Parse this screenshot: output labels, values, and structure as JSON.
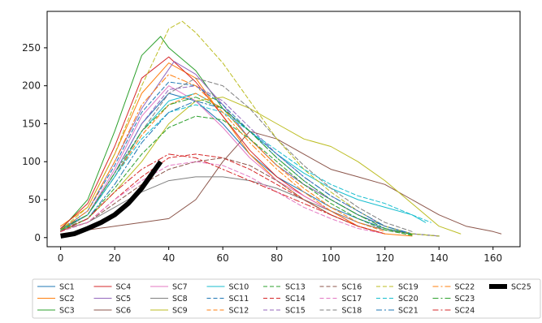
{
  "chart_data": {
    "type": "line",
    "title": "",
    "xlabel": "",
    "ylabel": "",
    "xlim": [
      -5,
      170
    ],
    "ylim": [
      -12,
      298
    ],
    "xticks": [
      0,
      20,
      40,
      60,
      80,
      100,
      120,
      140,
      160
    ],
    "yticks": [
      0,
      50,
      100,
      150,
      200,
      250
    ],
    "legend_position": "bottom",
    "grid": false,
    "series": [
      {
        "name": "SC1",
        "color": "#1f77b4",
        "dash": "solid",
        "x": [
          0,
          10,
          20,
          30,
          40,
          50,
          60,
          70,
          80,
          90,
          100,
          110,
          120,
          130,
          140
        ],
        "y": [
          12,
          30,
          85,
          150,
          190,
          180,
          150,
          110,
          80,
          60,
          40,
          25,
          12,
          5,
          2
        ]
      },
      {
        "name": "SC2",
        "color": "#ff7f0e",
        "dash": "solid",
        "x": [
          0,
          10,
          20,
          30,
          40,
          50,
          60,
          70,
          80,
          90,
          100,
          110,
          120,
          130
        ],
        "y": [
          15,
          40,
          110,
          190,
          230,
          210,
          160,
          110,
          75,
          50,
          30,
          15,
          5,
          2
        ]
      },
      {
        "name": "SC3",
        "color": "#2ca02c",
        "dash": "solid",
        "x": [
          0,
          10,
          20,
          30,
          37,
          40,
          50,
          60,
          70,
          80,
          90,
          100,
          110,
          120,
          130,
          140
        ],
        "y": [
          10,
          50,
          140,
          240,
          265,
          250,
          220,
          170,
          130,
          95,
          70,
          50,
          30,
          15,
          5,
          2
        ]
      },
      {
        "name": "SC4",
        "color": "#d62728",
        "dash": "solid",
        "x": [
          0,
          10,
          20,
          30,
          40,
          50,
          60,
          70,
          80,
          90,
          100,
          110,
          120
        ],
        "y": [
          12,
          45,
          120,
          210,
          238,
          205,
          160,
          115,
          80,
          55,
          35,
          15,
          5
        ]
      },
      {
        "name": "SC5",
        "color": "#9467bd",
        "dash": "solid",
        "x": [
          0,
          10,
          20,
          30,
          42,
          50,
          60,
          70,
          80,
          90,
          100,
          110,
          120,
          130,
          140
        ],
        "y": [
          10,
          35,
          100,
          170,
          232,
          215,
          175,
          130,
          95,
          70,
          50,
          30,
          15,
          5,
          2
        ]
      },
      {
        "name": "SC6",
        "color": "#8c564b",
        "dash": "solid",
        "x": [
          0,
          10,
          20,
          30,
          40,
          50,
          60,
          70,
          80,
          90,
          100,
          110,
          120,
          130,
          140,
          150,
          160,
          163
        ],
        "y": [
          5,
          10,
          15,
          20,
          25,
          50,
          100,
          140,
          130,
          110,
          90,
          80,
          70,
          50,
          30,
          15,
          8,
          5
        ]
      },
      {
        "name": "SC7",
        "color": "#e377c2",
        "dash": "solid",
        "x": [
          0,
          10,
          20,
          30,
          40,
          50,
          60,
          70,
          80,
          90,
          100,
          110,
          120
        ],
        "y": [
          8,
          30,
          90,
          160,
          200,
          180,
          145,
          105,
          75,
          55,
          35,
          20,
          10
        ]
      },
      {
        "name": "SC8",
        "color": "#7f7f7f",
        "dash": "solid",
        "x": [
          0,
          10,
          20,
          30,
          40,
          50,
          60,
          70,
          80,
          90,
          100,
          110,
          120,
          130
        ],
        "y": [
          10,
          20,
          40,
          60,
          75,
          80,
          80,
          75,
          65,
          50,
          35,
          20,
          10,
          5
        ]
      },
      {
        "name": "SC9",
        "color": "#bcbd22",
        "dash": "solid",
        "x": [
          0,
          10,
          20,
          30,
          40,
          50,
          60,
          70,
          80,
          90,
          100,
          110,
          120,
          130,
          140,
          148
        ],
        "y": [
          8,
          25,
          60,
          100,
          150,
          180,
          185,
          170,
          150,
          130,
          120,
          100,
          75,
          45,
          15,
          5
        ]
      },
      {
        "name": "SC10",
        "color": "#17becf",
        "dash": "solid",
        "x": [
          0,
          10,
          20,
          30,
          40,
          50,
          60,
          70,
          80,
          90,
          100,
          110,
          120,
          130,
          135
        ],
        "y": [
          10,
          30,
          80,
          140,
          180,
          190,
          170,
          140,
          110,
          85,
          65,
          50,
          40,
          30,
          20
        ]
      },
      {
        "name": "SC11",
        "color": "#1f77b4",
        "dash": "dashed",
        "x": [
          0,
          10,
          20,
          30,
          40,
          50,
          60,
          70,
          80,
          90,
          100,
          110,
          120,
          130
        ],
        "y": [
          10,
          35,
          95,
          165,
          205,
          200,
          175,
          140,
          105,
          75,
          50,
          30,
          15,
          5
        ]
      },
      {
        "name": "SC12",
        "color": "#ff7f0e",
        "dash": "dashed",
        "x": [
          0,
          10,
          20,
          30,
          40,
          50,
          60,
          70,
          80,
          90,
          100,
          110,
          120
        ],
        "y": [
          10,
          30,
          80,
          135,
          175,
          190,
          170,
          130,
          95,
          65,
          40,
          20,
          8
        ]
      },
      {
        "name": "SC13",
        "color": "#2ca02c",
        "dash": "dashed",
        "x": [
          0,
          10,
          20,
          30,
          40,
          50,
          60,
          70,
          80,
          90,
          100,
          110,
          120,
          130
        ],
        "y": [
          10,
          25,
          65,
          110,
          145,
          160,
          155,
          130,
          100,
          70,
          45,
          25,
          10,
          3
        ]
      },
      {
        "name": "SC14",
        "color": "#d62728",
        "dash": "dashed",
        "x": [
          0,
          10,
          20,
          30,
          40,
          50,
          60,
          70,
          80,
          90,
          100,
          110,
          120
        ],
        "y": [
          8,
          20,
          50,
          80,
          105,
          110,
          105,
          90,
          70,
          50,
          30,
          15,
          5
        ]
      },
      {
        "name": "SC15",
        "color": "#9467bd",
        "dash": "dashed",
        "x": [
          0,
          10,
          20,
          30,
          40,
          50,
          60,
          70,
          80,
          90,
          100,
          110,
          120,
          130
        ],
        "y": [
          10,
          30,
          85,
          150,
          195,
          200,
          180,
          145,
          110,
          80,
          55,
          35,
          15,
          5
        ]
      },
      {
        "name": "SC16",
        "color": "#8c564b",
        "dash": "dashed",
        "x": [
          0,
          10,
          20,
          30,
          40,
          50,
          60,
          70,
          80,
          90,
          100,
          110,
          120
        ],
        "y": [
          8,
          20,
          45,
          70,
          90,
          100,
          105,
          95,
          75,
          50,
          30,
          15,
          5
        ]
      },
      {
        "name": "SC17",
        "color": "#e377c2",
        "dash": "dashed",
        "x": [
          0,
          10,
          20,
          30,
          40,
          50,
          60,
          70,
          80,
          90,
          100,
          110,
          120
        ],
        "y": [
          8,
          20,
          50,
          75,
          95,
          100,
          95,
          80,
          60,
          40,
          25,
          12,
          5
        ]
      },
      {
        "name": "SC18",
        "color": "#7f7f7f",
        "dash": "dashed",
        "x": [
          0,
          10,
          20,
          30,
          40,
          50,
          60,
          70,
          80,
          90,
          100,
          110,
          120,
          130
        ],
        "y": [
          10,
          30,
          80,
          140,
          190,
          210,
          200,
          170,
          130,
          95,
          65,
          40,
          20,
          8
        ]
      },
      {
        "name": "SC19",
        "color": "#bcbd22",
        "dash": "dashed",
        "x": [
          0,
          10,
          20,
          30,
          40,
          45,
          50,
          60,
          70,
          80,
          90,
          100,
          110,
          120,
          130,
          140
        ],
        "y": [
          10,
          40,
          110,
          200,
          275,
          285,
          270,
          230,
          180,
          130,
          90,
          60,
          35,
          15,
          5,
          2
        ]
      },
      {
        "name": "SC20",
        "color": "#17becf",
        "dash": "dashed",
        "x": [
          0,
          10,
          20,
          30,
          40,
          50,
          60,
          70,
          80,
          90,
          100,
          110,
          120,
          130,
          137
        ],
        "y": [
          10,
          30,
          80,
          130,
          165,
          175,
          165,
          140,
          115,
          90,
          70,
          55,
          45,
          30,
          20
        ]
      },
      {
        "name": "SC21",
        "color": "#1f77b4",
        "dash": "dashdot",
        "x": [
          0,
          10,
          20,
          30,
          40,
          50,
          60,
          70,
          80,
          90,
          100,
          110,
          120,
          130
        ],
        "y": [
          8,
          25,
          70,
          125,
          165,
          180,
          170,
          140,
          110,
          80,
          55,
          35,
          15,
          5
        ]
      },
      {
        "name": "SC22",
        "color": "#ff7f0e",
        "dash": "dashdot",
        "x": [
          0,
          10,
          20,
          30,
          40,
          50,
          60,
          70,
          80,
          90,
          100,
          110,
          120
        ],
        "y": [
          10,
          35,
          100,
          175,
          215,
          200,
          165,
          125,
          90,
          60,
          35,
          15,
          5
        ]
      },
      {
        "name": "SC23",
        "color": "#2ca02c",
        "dash": "dashdot",
        "x": [
          0,
          10,
          20,
          30,
          40,
          50,
          60,
          70,
          80,
          90,
          100,
          110,
          120,
          130
        ],
        "y": [
          10,
          30,
          85,
          140,
          175,
          185,
          170,
          140,
          105,
          75,
          50,
          30,
          12,
          4
        ]
      },
      {
        "name": "SC24",
        "color": "#d62728",
        "dash": "dashdot",
        "x": [
          0,
          10,
          20,
          30,
          40,
          50,
          60,
          70,
          80,
          90,
          100,
          110,
          120
        ],
        "y": [
          8,
          25,
          60,
          90,
          110,
          105,
          90,
          75,
          60,
          45,
          30,
          15,
          5
        ]
      },
      {
        "name": "SC25",
        "color": "#000000",
        "dash": "solid",
        "bold": true,
        "x": [
          0,
          5,
          10,
          15,
          20,
          25,
          30,
          35,
          37
        ],
        "y": [
          2,
          5,
          12,
          20,
          30,
          45,
          65,
          90,
          100
        ]
      }
    ]
  }
}
